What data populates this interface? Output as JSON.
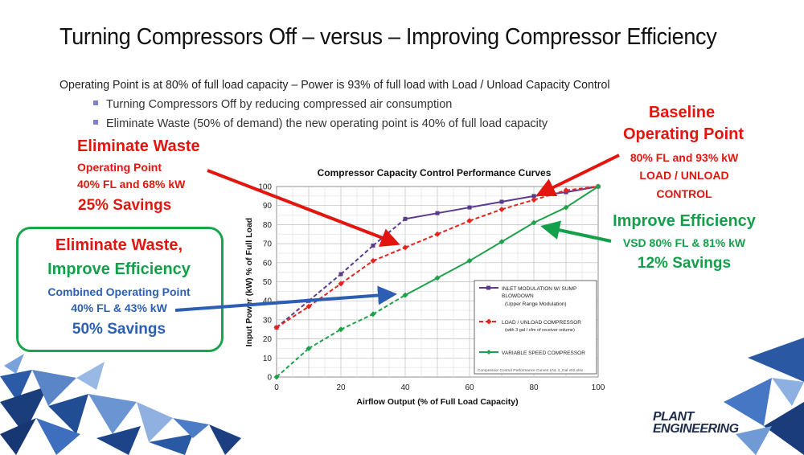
{
  "slide": {
    "title": "Turning Compressors Off – versus – Improving Compressor Efficiency",
    "subtitle": "Operating Point is at 80% of full load capacity – Power is 93% of full load with Load / Unload Capacity Control",
    "bullets": [
      "Turning Compressors Off by reducing compressed air consumption",
      "Eliminate Waste (50% of demand) the new operating point is 40% of full load capacity"
    ]
  },
  "annotations": {
    "eliminate_waste": {
      "heading": "Eliminate Waste",
      "line1": "Operating Point",
      "line2": "40% FL and 68% kW",
      "savings": "25% Savings"
    },
    "baseline": {
      "heading1": "Baseline",
      "heading2": "Operating Point",
      "line1": "80% FL and 93% kW",
      "line2": "LOAD / UNLOAD",
      "line3": "CONTROL"
    },
    "improve_efficiency": {
      "heading": "Improve Efficiency",
      "line1": "VSD 80% FL & 81% kW",
      "savings": "12% Savings"
    },
    "combined": {
      "heading1": "Eliminate Waste,",
      "heading2": "Improve Efficiency",
      "line1": "Combined Operating Point",
      "line2": "40% FL & 43% kW",
      "savings": "50% Savings"
    }
  },
  "colors": {
    "red": "#e3160f",
    "green": "#12a04a",
    "blue": "#2c5fb4",
    "inlet_series": "#5b3a8e",
    "load_unload_series": "#e8221c",
    "vsd_series": "#20a04a"
  },
  "logo": {
    "line1": "PLANT",
    "line2": "ENGINEERING"
  },
  "chart_data": {
    "type": "line",
    "title": "Compressor Capacity Control Performance Curves",
    "xlabel": "Airflow Output (% of Full Load Capacity)",
    "ylabel": "Input Power (kW) % of Full Load",
    "xlim": [
      0,
      100
    ],
    "ylim": [
      0,
      100
    ],
    "xticks": [
      0,
      20,
      40,
      60,
      80,
      100
    ],
    "yticks": [
      0,
      10,
      20,
      30,
      40,
      50,
      60,
      70,
      80,
      90,
      100
    ],
    "grid": true,
    "legend_position": "bottom-right",
    "legend": [
      {
        "line1": "INLET MODULATION W/ SUMP",
        "line2": "BLOWDOWN",
        "line3": "(Upper Range Modulation)"
      },
      {
        "line1": "LOAD / UNLOAD COMPRESSOR",
        "line2": "(with 3 gal / cfm of receiver volume)",
        "line3": ""
      },
      {
        "line1": "VARIABLE SPEED COMPRESSOR",
        "line2": "",
        "line3": ""
      }
    ],
    "footnote": "Compressor Control Performance Curves LNL 3_Gal v02.xlsx",
    "series": [
      {
        "name": "INLET MODULATION W/ SUMP BLOWDOWN",
        "style": "solid-upper, dashed-lower",
        "x": [
          0,
          10,
          20,
          30,
          40,
          50,
          60,
          70,
          80,
          90,
          100
        ],
        "y": [
          26,
          40,
          54,
          69,
          83,
          86,
          89,
          92,
          95,
          97,
          100
        ]
      },
      {
        "name": "LOAD / UNLOAD COMPRESSOR",
        "style": "dashed",
        "x": [
          0,
          10,
          20,
          30,
          40,
          50,
          60,
          70,
          80,
          90,
          100
        ],
        "y": [
          26,
          37,
          49,
          61,
          68,
          75,
          82,
          88,
          93,
          98,
          100
        ]
      },
      {
        "name": "VARIABLE SPEED COMPRESSOR",
        "style": "solid-upper, dashed-lower",
        "x": [
          0,
          10,
          20,
          30,
          40,
          50,
          60,
          70,
          80,
          90,
          100
        ],
        "y": [
          0,
          15,
          25,
          33,
          43,
          52,
          61,
          71,
          81,
          89,
          100
        ]
      }
    ]
  }
}
